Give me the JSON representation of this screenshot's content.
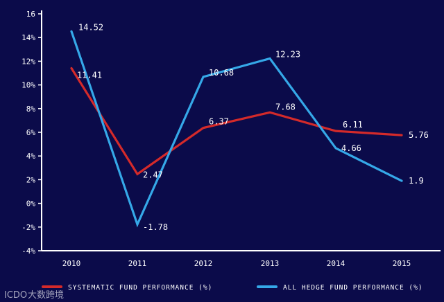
{
  "chart_data": {
    "type": "line",
    "categories": [
      "2010",
      "2011",
      "2012",
      "2013",
      "2014",
      "2015"
    ],
    "ylim": [
      -4,
      16
    ],
    "yticks": [
      -4,
      -2,
      0,
      2,
      4,
      6,
      8,
      10,
      12,
      14,
      16
    ],
    "ytick_labels": [
      "-4%",
      "-2%",
      "0%",
      "2%",
      "4%",
      "6%",
      "8%",
      "10%",
      "12%",
      "14%",
      "16"
    ],
    "series": [
      {
        "name": "SYSTEMATIC FUND PERFORMANCE (%)",
        "color": "#d42a2a",
        "values": [
          11.41,
          2.47,
          6.37,
          7.68,
          6.11,
          5.76
        ],
        "labels": [
          "11.41",
          "2.47",
          "6.37",
          "7.68",
          "6.11",
          "5.76"
        ]
      },
      {
        "name": "ALL HEDGE FUND PERFORMANCE (%)",
        "color": "#35a8e8",
        "values": [
          14.52,
          -1.78,
          10.68,
          12.23,
          4.66,
          1.9
        ],
        "labels": [
          "14.52",
          "-1.78",
          "10.68",
          "12.23",
          "4.66",
          "1.9"
        ]
      }
    ],
    "legend_position": "bottom",
    "grid": false
  },
  "watermark": {
    "mark": "ICDO",
    "text": "大数跨境"
  }
}
